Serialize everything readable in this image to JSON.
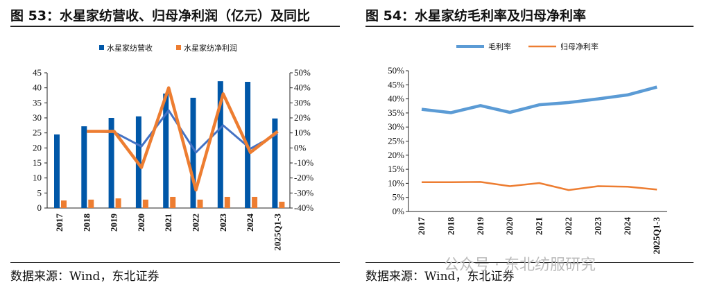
{
  "left": {
    "title": "图 53：水星家纺营收、归母净利润（亿元）及同比",
    "source": "数据来源：Wind，东北证券"
  },
  "right": {
    "title": "图 54：水星家纺毛利率及归母净利率",
    "source": "数据来源：Wind，东北证券"
  },
  "watermark": "公众号 · 东北纺服研究",
  "chart_data": [
    {
      "type": "bar+line",
      "categories": [
        "2017",
        "2018",
        "2019",
        "2020",
        "2021",
        "2022",
        "2023",
        "2024",
        "2025Q1-3"
      ],
      "ylim": [
        0,
        45
      ],
      "yticks": [
        0,
        5,
        10,
        15,
        20,
        25,
        30,
        35,
        40,
        45
      ],
      "y2lim": [
        -40,
        50
      ],
      "y2ticks": [
        "-40%",
        "-30%",
        "-20%",
        "-10%",
        "0%",
        "10%",
        "20%",
        "30%",
        "40%",
        "50%"
      ],
      "legend": "top",
      "series": [
        {
          "name": "水星家纺营收",
          "kind": "bar",
          "axis": "left",
          "color": "#0057a8",
          "values": [
            24.5,
            27.2,
            30.0,
            30.5,
            38.1,
            36.7,
            42.2,
            42.0,
            29.8
          ]
        },
        {
          "name": "水星家纺净利润",
          "kind": "bar",
          "axis": "left",
          "color": "#ed7d31",
          "values": [
            2.5,
            2.8,
            3.2,
            2.8,
            3.7,
            2.8,
            3.7,
            3.7,
            2.1
          ]
        },
        {
          "kind": "line",
          "axis": "right",
          "color": "#4472c4",
          "values": [
            null,
            11,
            10.5,
            1,
            25,
            -3,
            15,
            -0.5,
            9.5
          ]
        },
        {
          "kind": "line",
          "axis": "right",
          "color": "#ed7d31",
          "values": [
            null,
            11,
            11,
            -13,
            40,
            -28,
            36,
            -3,
            11
          ]
        }
      ]
    },
    {
      "type": "line",
      "categories": [
        "2017",
        "2018",
        "2019",
        "2020",
        "2021",
        "2022",
        "2023",
        "2024",
        "2025Q1-3"
      ],
      "ylim": [
        0,
        50
      ],
      "yticks": [
        "0%",
        "5%",
        "10%",
        "15%",
        "20%",
        "25%",
        "30%",
        "35%",
        "40%",
        "45%",
        "50%"
      ],
      "legend": "top",
      "series": [
        {
          "name": "毛利率",
          "color": "#5b9bd5",
          "values": [
            36.3,
            35.1,
            37.6,
            35.2,
            37.9,
            38.7,
            40.0,
            41.4,
            44.2
          ]
        },
        {
          "name": "归母净利率",
          "color": "#ed7d31",
          "values": [
            10.4,
            10.4,
            10.5,
            9.0,
            10.1,
            7.6,
            9.0,
            8.8,
            7.8
          ]
        }
      ]
    }
  ]
}
